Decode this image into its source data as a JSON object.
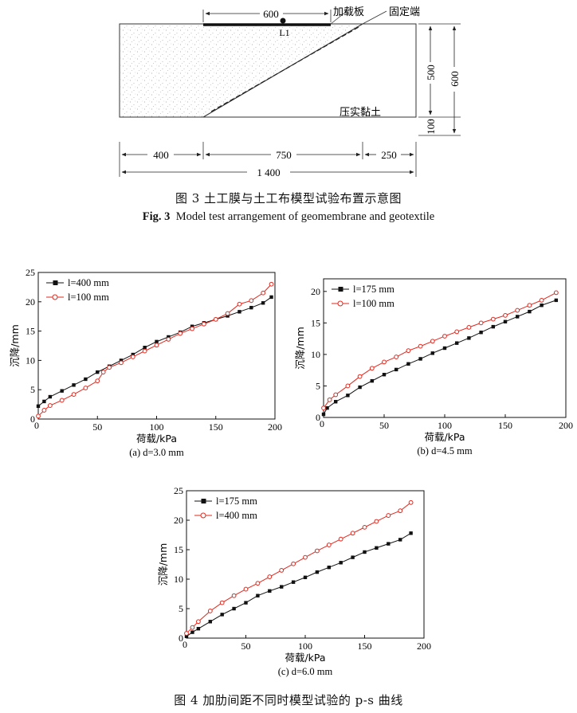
{
  "figure3": {
    "caption_cn": "图 3  土工膜与土工布模型试验布置示意图",
    "caption_en_label": "Fig. 3",
    "caption_en_text": "Model test arrangement of geomembrane and geotextile",
    "labels": {
      "plate": "加载板",
      "fixed_end": "固定端",
      "point": "L1",
      "soil": "压实黏土",
      "dim_600_top": "600",
      "dim_500": "500",
      "dim_600_side": "600",
      "dim_100": "100",
      "dim_400": "400",
      "dim_750": "750",
      "dim_250": "250",
      "dim_1400": "1 400"
    }
  },
  "figure4": {
    "caption": "图 4  加肋间距不同时模型试验的 p-s 曲线",
    "colors": {
      "black": "#111111",
      "red": "#e0281e"
    }
  },
  "chart_data": [
    {
      "type": "line",
      "subtitle": "(a) d=3.0 mm",
      "xlabel": "荷载/kPa",
      "ylabel": "沉降/mm",
      "xlim": [
        0,
        200
      ],
      "ylim": [
        0,
        25
      ],
      "xticks": [
        50,
        100,
        150,
        200
      ],
      "yticks": [
        0,
        5,
        10,
        15,
        20,
        25
      ],
      "legend_position": "top-left",
      "series": [
        {
          "name": "l=400 mm",
          "color": "#111111",
          "marker": "square-filled",
          "points": [
            [
              0,
              2.2
            ],
            [
              5,
              3.0
            ],
            [
              10,
              3.8
            ],
            [
              20,
              4.8
            ],
            [
              30,
              5.8
            ],
            [
              40,
              6.8
            ],
            [
              50,
              8.0
            ],
            [
              60,
              9.0
            ],
            [
              70,
              10.0
            ],
            [
              80,
              11.0
            ],
            [
              90,
              12.2
            ],
            [
              100,
              13.2
            ],
            [
              110,
              14.0
            ],
            [
              120,
              14.8
            ],
            [
              130,
              15.8
            ],
            [
              140,
              16.4
            ],
            [
              150,
              17.0
            ],
            [
              160,
              17.6
            ],
            [
              170,
              18.3
            ],
            [
              180,
              19.0
            ],
            [
              190,
              19.8
            ],
            [
              197,
              20.8
            ]
          ]
        },
        {
          "name": "l=100 mm",
          "color": "#e0281e",
          "marker": "circle-open",
          "points": [
            [
              0,
              0.5
            ],
            [
              5,
              1.5
            ],
            [
              10,
              2.3
            ],
            [
              20,
              3.2
            ],
            [
              30,
              4.2
            ],
            [
              40,
              5.3
            ],
            [
              50,
              6.5
            ],
            [
              55,
              8.0
            ],
            [
              60,
              8.8
            ],
            [
              70,
              9.6
            ],
            [
              80,
              10.6
            ],
            [
              90,
              11.6
            ],
            [
              100,
              12.6
            ],
            [
              110,
              13.6
            ],
            [
              120,
              14.6
            ],
            [
              130,
              15.4
            ],
            [
              140,
              16.2
            ],
            [
              150,
              17.0
            ],
            [
              160,
              18.0
            ],
            [
              170,
              19.6
            ],
            [
              180,
              20.2
            ],
            [
              190,
              21.5
            ],
            [
              197,
              23.0
            ]
          ]
        }
      ]
    },
    {
      "type": "line",
      "subtitle": "(b) d=4.5 mm",
      "xlabel": "荷载/kPa",
      "ylabel": "沉降/mm",
      "xlim": [
        0,
        200
      ],
      "ylim": [
        0,
        22
      ],
      "xticks": [
        50,
        100,
        150,
        200
      ],
      "yticks": [
        0,
        5,
        10,
        15,
        20
      ],
      "legend_position": "top-left",
      "series": [
        {
          "name": "l=175 mm",
          "color": "#111111",
          "marker": "square-filled",
          "points": [
            [
              0,
              0.5
            ],
            [
              3,
              1.5
            ],
            [
              10,
              2.5
            ],
            [
              20,
              3.5
            ],
            [
              30,
              4.8
            ],
            [
              40,
              5.8
            ],
            [
              50,
              6.8
            ],
            [
              60,
              7.6
            ],
            [
              70,
              8.5
            ],
            [
              80,
              9.3
            ],
            [
              90,
              10.2
            ],
            [
              100,
              11.0
            ],
            [
              110,
              11.8
            ],
            [
              120,
              12.6
            ],
            [
              130,
              13.5
            ],
            [
              140,
              14.4
            ],
            [
              150,
              15.2
            ],
            [
              160,
              16.0
            ],
            [
              170,
              16.8
            ],
            [
              180,
              17.8
            ],
            [
              192,
              18.6
            ]
          ]
        },
        {
          "name": "l=100 mm",
          "color": "#e0281e",
          "marker": "circle-open",
          "points": [
            [
              0,
              1.5
            ],
            [
              5,
              2.8
            ],
            [
              10,
              3.6
            ],
            [
              20,
              5.0
            ],
            [
              30,
              6.5
            ],
            [
              40,
              7.8
            ],
            [
              50,
              8.8
            ],
            [
              60,
              9.6
            ],
            [
              70,
              10.6
            ],
            [
              80,
              11.3
            ],
            [
              90,
              12.1
            ],
            [
              100,
              12.9
            ],
            [
              110,
              13.6
            ],
            [
              120,
              14.3
            ],
            [
              130,
              15.0
            ],
            [
              140,
              15.6
            ],
            [
              150,
              16.2
            ],
            [
              160,
              17.0
            ],
            [
              170,
              17.8
            ],
            [
              180,
              18.6
            ],
            [
              192,
              19.8
            ]
          ]
        }
      ]
    },
    {
      "type": "line",
      "subtitle": "(c) d=6.0 mm",
      "xlabel": "荷载/kPa",
      "ylabel": "沉降/mm",
      "xlim": [
        0,
        200
      ],
      "ylim": [
        0,
        25
      ],
      "xticks": [
        50,
        100,
        150,
        200
      ],
      "yticks": [
        0,
        5,
        10,
        15,
        20,
        25
      ],
      "legend_position": "top-left",
      "series": [
        {
          "name": "l=175 mm",
          "color": "#111111",
          "marker": "square-filled",
          "points": [
            [
              0,
              0.3
            ],
            [
              5,
              1.0
            ],
            [
              10,
              1.6
            ],
            [
              20,
              2.8
            ],
            [
              30,
              4.0
            ],
            [
              40,
              5.0
            ],
            [
              50,
              6.0
            ],
            [
              60,
              7.2
            ],
            [
              70,
              8.0
            ],
            [
              80,
              8.7
            ],
            [
              90,
              9.5
            ],
            [
              100,
              10.3
            ],
            [
              110,
              11.2
            ],
            [
              120,
              12.0
            ],
            [
              130,
              12.8
            ],
            [
              140,
              13.7
            ],
            [
              150,
              14.6
            ],
            [
              160,
              15.3
            ],
            [
              170,
              16.0
            ],
            [
              180,
              16.7
            ],
            [
              189,
              17.8
            ]
          ]
        },
        {
          "name": "l=400 mm",
          "color": "#e0281e",
          "marker": "circle-open",
          "points": [
            [
              0,
              0.8
            ],
            [
              5,
              1.8
            ],
            [
              10,
              2.8
            ],
            [
              20,
              4.6
            ],
            [
              30,
              6.0
            ],
            [
              40,
              7.2
            ],
            [
              50,
              8.3
            ],
            [
              60,
              9.3
            ],
            [
              70,
              10.4
            ],
            [
              80,
              11.5
            ],
            [
              90,
              12.6
            ],
            [
              100,
              13.7
            ],
            [
              110,
              14.8
            ],
            [
              120,
              15.8
            ],
            [
              130,
              16.8
            ],
            [
              140,
              17.8
            ],
            [
              150,
              18.8
            ],
            [
              160,
              19.8
            ],
            [
              170,
              20.8
            ],
            [
              180,
              21.6
            ],
            [
              189,
              23.0
            ]
          ]
        }
      ]
    }
  ]
}
